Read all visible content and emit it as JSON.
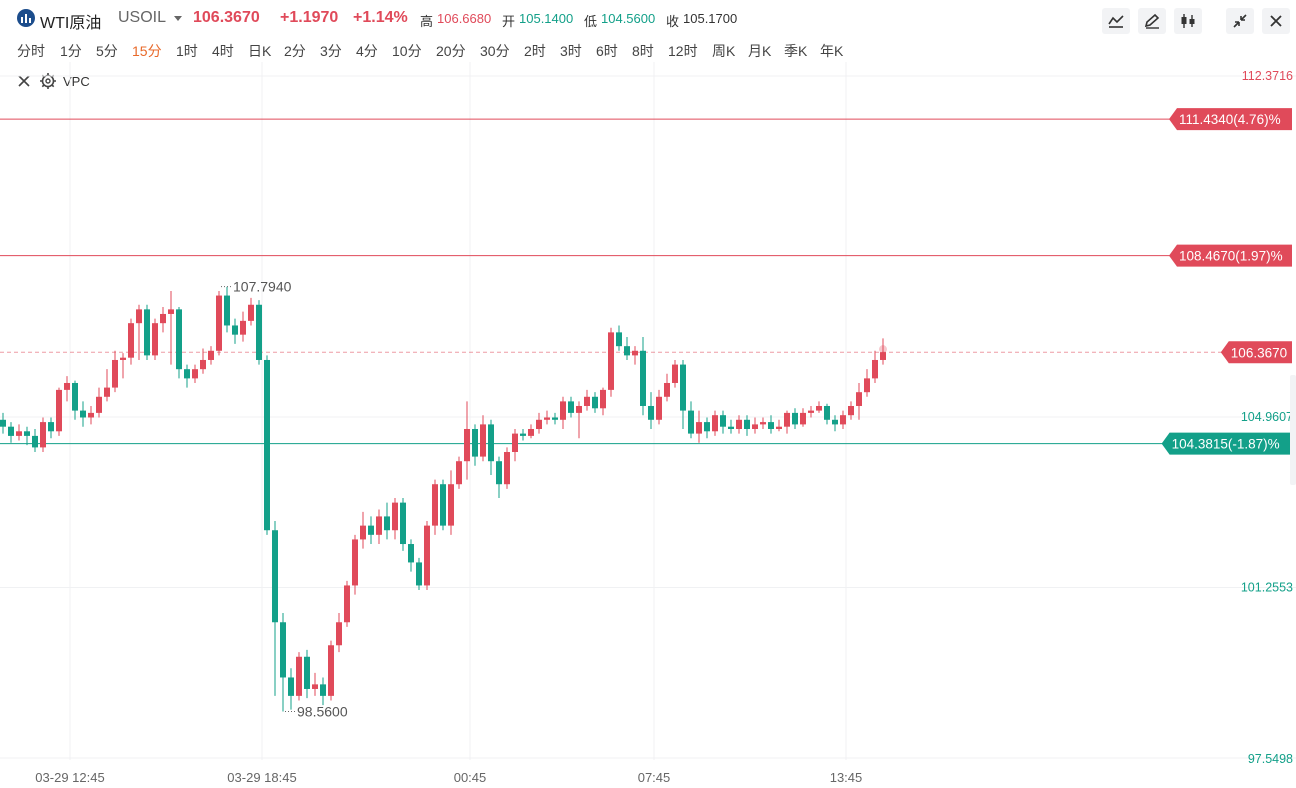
{
  "header": {
    "symbol_name": "WTI原油",
    "symbol_code": "USOIL",
    "last_price": "106.3670",
    "change": "+1.1970",
    "change_pct": "+1.14%",
    "high_label": "高",
    "high_value": "106.6680",
    "open_label": "开",
    "open_value": "105.1400",
    "low_label": "低",
    "low_value": "104.5600",
    "close_label": "收",
    "close_value": "105.1700"
  },
  "toolbar": {
    "icons": [
      "line-indicator-icon",
      "draw-pencil-icon",
      "candlestick-icon",
      "collapse-icon",
      "close-icon"
    ]
  },
  "intervals": [
    "分时",
    "1分",
    "5分",
    "15分",
    "1时",
    "4时",
    "日K",
    "2分",
    "3分",
    "4分",
    "10分",
    "20分",
    "30分",
    "2时",
    "3时",
    "6时",
    "8时",
    "12时",
    "周K",
    "月K",
    "季K",
    "年K"
  ],
  "active_interval": "15分",
  "indicator": {
    "name": "VPC"
  },
  "colors": {
    "up": "#e04a5a",
    "down": "#13a089",
    "ma_line": "#e04a5a",
    "grid": "#f0f1f3",
    "axis_text": "#999999"
  },
  "chart_data": {
    "type": "candlestick",
    "y_axis": {
      "min": 97.5498,
      "max": 112.3716,
      "ticks": [
        "112.3716",
        "104.9607",
        "101.2553",
        "97.5498"
      ]
    },
    "x_ticks": [
      "03-29 12:45",
      "03-29 18:45",
      "00:45",
      "07:45",
      "13:45"
    ],
    "x_tick_bar_index": [
      4,
      28,
      54,
      77,
      101
    ],
    "hlines": [
      {
        "label": "111.4340(4.76)%",
        "value": 111.434,
        "color": "#e04a5a",
        "style": "solid"
      },
      {
        "label": "108.4670(1.97)%",
        "value": 108.467,
        "color": "#e04a5a",
        "style": "solid"
      },
      {
        "label": "106.3670",
        "value": 106.367,
        "color": "#e04a5a",
        "style": "dashed"
      },
      {
        "label": "104.3815(-1.87)%",
        "value": 104.3815,
        "color": "#13a089",
        "style": "solid"
      }
    ],
    "annotations": [
      {
        "text": "107.7940",
        "bar_index": 27,
        "value": 107.794
      },
      {
        "text": "98.5600",
        "bar_index": 35,
        "value": 98.56
      }
    ],
    "candles": [
      [
        104.9,
        104.75,
        105.05,
        104.6
      ],
      [
        104.75,
        104.55,
        104.85,
        104.4
      ],
      [
        104.55,
        104.65,
        104.8,
        104.45
      ],
      [
        104.65,
        104.55,
        104.75,
        104.35
      ],
      [
        104.55,
        104.3,
        104.7,
        104.2
      ],
      [
        104.3,
        104.85,
        104.95,
        104.2
      ],
      [
        104.85,
        104.65,
        104.95,
        104.5
      ],
      [
        104.65,
        105.55,
        105.6,
        104.55
      ],
      [
        105.55,
        105.7,
        105.85,
        105.3
      ],
      [
        105.7,
        105.1,
        105.75,
        104.9
      ],
      [
        105.1,
        104.95,
        105.3,
        104.75
      ],
      [
        104.95,
        105.05,
        105.2,
        104.8
      ],
      [
        105.05,
        105.4,
        105.6,
        104.95
      ],
      [
        105.4,
        105.6,
        106.0,
        105.3
      ],
      [
        105.6,
        106.2,
        106.4,
        105.5
      ],
      [
        106.2,
        106.25,
        106.35,
        105.8
      ],
      [
        106.25,
        107.0,
        107.1,
        106.1
      ],
      [
        107.0,
        107.3,
        107.4,
        106.2
      ],
      [
        107.3,
        106.3,
        107.4,
        106.2
      ],
      [
        106.3,
        107.0,
        107.1,
        106.2
      ],
      [
        107.0,
        107.2,
        107.35,
        106.8
      ],
      [
        107.2,
        107.3,
        107.7,
        106.1
      ],
      [
        107.3,
        106.0,
        107.35,
        105.8
      ],
      [
        106.0,
        105.8,
        106.1,
        105.6
      ],
      [
        105.8,
        106.0,
        106.1,
        105.7
      ],
      [
        106.0,
        106.2,
        106.45,
        105.9
      ],
      [
        106.2,
        106.4,
        106.5,
        106.1
      ],
      [
        106.4,
        107.6,
        107.7,
        106.3
      ],
      [
        107.6,
        106.95,
        107.79,
        106.8
      ],
      [
        106.95,
        106.75,
        107.1,
        106.55
      ],
      [
        106.75,
        107.05,
        107.25,
        106.6
      ],
      [
        107.05,
        107.4,
        107.55,
        106.95
      ],
      [
        107.4,
        106.2,
        107.5,
        106.1
      ],
      [
        106.2,
        102.5,
        106.3,
        102.4
      ],
      [
        102.5,
        100.5,
        102.7,
        98.9
      ],
      [
        100.5,
        99.3,
        100.7,
        98.56
      ],
      [
        99.3,
        98.9,
        99.5,
        98.6
      ],
      [
        98.9,
        99.75,
        99.85,
        98.8
      ],
      [
        99.75,
        99.05,
        99.9,
        98.85
      ],
      [
        99.05,
        99.15,
        99.4,
        98.9
      ],
      [
        99.15,
        98.9,
        99.3,
        98.7
      ],
      [
        98.9,
        100.0,
        100.1,
        98.8
      ],
      [
        100.0,
        100.5,
        100.7,
        99.85
      ],
      [
        100.5,
        101.3,
        101.4,
        100.4
      ],
      [
        101.3,
        102.3,
        102.4,
        101.1
      ],
      [
        102.3,
        102.6,
        102.9,
        102.1
      ],
      [
        102.6,
        102.4,
        102.8,
        102.2
      ],
      [
        102.4,
        102.8,
        102.95,
        102.2
      ],
      [
        102.8,
        102.5,
        103.1,
        102.3
      ],
      [
        102.5,
        103.1,
        103.2,
        102.3
      ],
      [
        103.1,
        102.2,
        103.2,
        102.05
      ],
      [
        102.2,
        101.8,
        102.3,
        101.6
      ],
      [
        101.8,
        101.3,
        101.9,
        101.2
      ],
      [
        101.3,
        102.6,
        102.7,
        101.2
      ],
      [
        102.6,
        103.5,
        103.6,
        102.4
      ],
      [
        103.5,
        102.6,
        103.6,
        102.5
      ],
      [
        102.6,
        103.5,
        103.8,
        102.4
      ],
      [
        103.5,
        104.0,
        104.1,
        103.4
      ],
      [
        104.0,
        104.7,
        105.3,
        103.6
      ],
      [
        104.7,
        104.1,
        104.8,
        103.9
      ],
      [
        104.1,
        104.8,
        105.0,
        104.0
      ],
      [
        104.8,
        104.0,
        104.9,
        103.7
      ],
      [
        104.0,
        103.5,
        104.1,
        103.2
      ],
      [
        103.5,
        104.2,
        104.3,
        103.4
      ],
      [
        104.2,
        104.6,
        104.7,
        104.0
      ],
      [
        104.6,
        104.55,
        104.7,
        104.45
      ],
      [
        104.55,
        104.7,
        104.8,
        104.5
      ],
      [
        104.7,
        104.9,
        105.05,
        104.6
      ],
      [
        104.9,
        104.95,
        105.1,
        104.8
      ],
      [
        104.95,
        104.9,
        105.05,
        104.8
      ],
      [
        104.9,
        105.3,
        105.4,
        104.7
      ],
      [
        105.3,
        105.05,
        105.4,
        104.95
      ],
      [
        105.05,
        105.2,
        105.3,
        104.5
      ],
      [
        105.2,
        105.4,
        105.55,
        105.1
      ],
      [
        105.4,
        105.15,
        105.5,
        105.05
      ],
      [
        105.15,
        105.55,
        105.6,
        105.0
      ],
      [
        105.55,
        106.8,
        106.9,
        105.4
      ],
      [
        106.8,
        106.5,
        106.95,
        106.4
      ],
      [
        106.5,
        106.3,
        106.7,
        106.2
      ],
      [
        106.3,
        106.4,
        106.5,
        106.1
      ],
      [
        106.4,
        105.2,
        106.7,
        105.0
      ],
      [
        105.2,
        104.9,
        105.5,
        104.7
      ],
      [
        104.9,
        105.4,
        105.55,
        104.8
      ],
      [
        105.4,
        105.7,
        105.9,
        105.3
      ],
      [
        105.7,
        106.1,
        106.2,
        105.6
      ],
      [
        106.1,
        105.1,
        106.2,
        104.7
      ],
      [
        105.1,
        104.6,
        105.3,
        104.5
      ],
      [
        104.6,
        104.85,
        105.1,
        104.4
      ],
      [
        104.85,
        104.65,
        104.95,
        104.5
      ],
      [
        104.65,
        105.0,
        105.1,
        104.55
      ],
      [
        105.0,
        104.75,
        105.1,
        104.6
      ],
      [
        104.75,
        104.7,
        104.9,
        104.6
      ],
      [
        104.7,
        104.9,
        105.0,
        104.6
      ],
      [
        104.9,
        104.7,
        105.0,
        104.55
      ],
      [
        104.7,
        104.8,
        104.95,
        104.6
      ],
      [
        104.8,
        104.85,
        104.95,
        104.7
      ],
      [
        104.85,
        104.7,
        105.0,
        104.6
      ],
      [
        104.7,
        104.75,
        104.9,
        104.65
      ],
      [
        104.75,
        105.05,
        105.1,
        104.6
      ],
      [
        105.05,
        104.8,
        105.15,
        104.7
      ],
      [
        104.8,
        105.05,
        105.15,
        104.75
      ],
      [
        105.05,
        105.1,
        105.2,
        104.95
      ],
      [
        105.1,
        105.2,
        105.3,
        105.05
      ],
      [
        105.2,
        104.9,
        105.25,
        104.8
      ],
      [
        104.9,
        104.8,
        105.0,
        104.65
      ],
      [
        104.8,
        105.0,
        105.1,
        104.7
      ],
      [
        105.0,
        105.2,
        105.3,
        104.9
      ],
      [
        105.2,
        105.5,
        105.7,
        104.9
      ],
      [
        105.5,
        105.8,
        106.0,
        105.4
      ],
      [
        105.8,
        106.2,
        106.4,
        105.7
      ],
      [
        106.2,
        106.37,
        106.67,
        106.1
      ]
    ]
  }
}
